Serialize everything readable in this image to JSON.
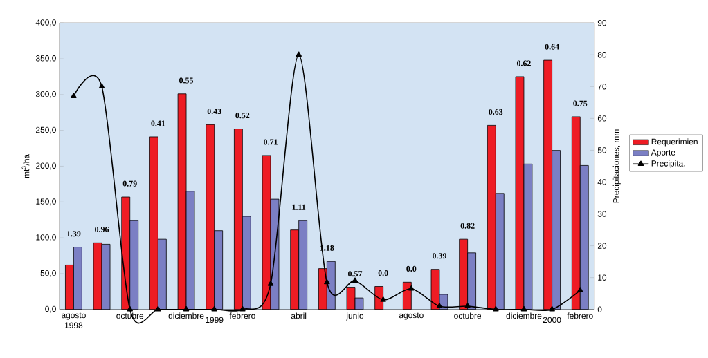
{
  "chart_data": {
    "type": "bar",
    "categories": [
      "agosto 1998",
      null,
      "octubre",
      null,
      "diciembre",
      "1999",
      "febrero",
      null,
      "abril",
      null,
      "junio",
      null,
      "agosto",
      null,
      "octubre",
      null,
      "diciembre",
      "2000",
      "febrero"
    ],
    "series": [
      {
        "name": "Requerimien",
        "color": "#ee1c24",
        "values": [
          62,
          93,
          157,
          241,
          301,
          258,
          252,
          215,
          111,
          57,
          31,
          32,
          38,
          56,
          98,
          257,
          325,
          348,
          269
        ]
      },
      {
        "name": "Aporte",
        "color": "#7b7fc4",
        "values": [
          87,
          91,
          124,
          98,
          165,
          110,
          130,
          154,
          124,
          67,
          16,
          null,
          null,
          21,
          79,
          162,
          203,
          222,
          201
        ]
      },
      {
        "name": "Precipita.",
        "type": "line",
        "axis": "y2",
        "color": "#000000",
        "marker": "triangle",
        "values": [
          67,
          70,
          0,
          0,
          0,
          0,
          0,
          8,
          80,
          8.5,
          9,
          3,
          6.5,
          1,
          1,
          0,
          0,
          0,
          6
        ]
      }
    ],
    "ylabel": "mt$^{3}$/ha",
    "y2label": "Precipitaciones, mm",
    "ylim": [
      0,
      400
    ],
    "yticks": [
      {
        "value": 0,
        "label": "0,0"
      },
      {
        "value": 50,
        "label": "50,0"
      },
      {
        "value": 100,
        "label": "100,0"
      },
      {
        "value": 150,
        "label": "150,0"
      },
      {
        "value": 200,
        "label": "200,0"
      },
      {
        "value": 250,
        "label": "250,0"
      },
      {
        "value": 300,
        "label": "300,0"
      },
      {
        "value": 350,
        "label": "350,0"
      },
      {
        "value": 400,
        "label": "400,0"
      }
    ],
    "y2lim": [
      0,
      90
    ],
    "y2ticks": [
      0,
      10,
      20,
      30,
      40,
      50,
      60,
      70,
      80,
      90
    ],
    "annotations": [
      "1.39",
      "0.96",
      "0.79",
      "0.41",
      "0.55",
      "0.43",
      "0.52",
      "0.71",
      "1.11",
      "1.18",
      "0.57",
      "0.0",
      "0.0",
      "0.39",
      "0.82",
      "0.63",
      "0.62",
      "0.64",
      "0.75"
    ],
    "legend": "right",
    "grid": false
  }
}
